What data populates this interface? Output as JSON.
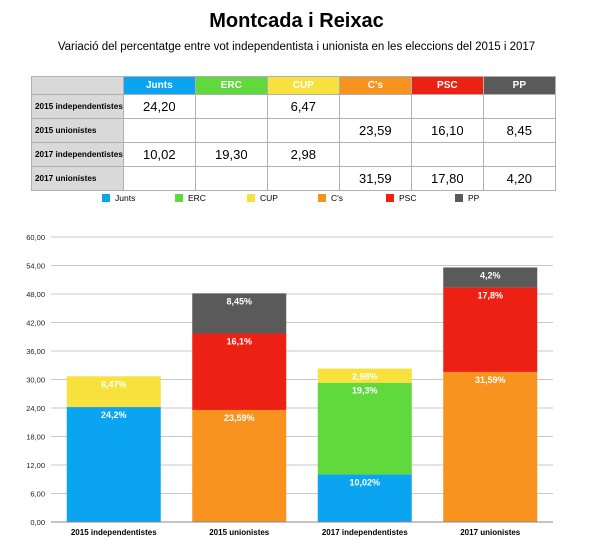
{
  "title": "Montcada i Reixac",
  "subtitle": "Variació del percentatge entre vot independentista i unionista en les eleccions del 2015 i 2017",
  "colors": {
    "Junts": "#0aa4f0",
    "ERC": "#5fd93b",
    "CUP": "#f7e13c",
    "Cs": "#f7931e",
    "PSC": "#ec2114",
    "PP": "#5a5a5a"
  },
  "table": {
    "headers": [
      "Junts",
      "ERC",
      "CUP",
      "C's",
      "PSC",
      "PP"
    ],
    "rows": [
      {
        "label": "2015 independentistes",
        "cells": [
          "24,20",
          "",
          "6,47",
          "",
          "",
          ""
        ]
      },
      {
        "label": "2015 unionistes",
        "cells": [
          "",
          "",
          "",
          "23,59",
          "16,10",
          "8,45"
        ]
      },
      {
        "label": "2017 independentistes",
        "cells": [
          "10,02",
          "19,30",
          "2,98",
          "",
          "",
          ""
        ]
      },
      {
        "label": "2017 unionistes",
        "cells": [
          "",
          "",
          "",
          "31,59",
          "17,80",
          "4,20"
        ]
      }
    ]
  },
  "chart_data": {
    "type": "bar",
    "stacked": true,
    "categories": [
      "2015 independentistes",
      "2015 unionistes",
      "2017 independentistes",
      "2017 unionistes"
    ],
    "series": [
      {
        "name": "Junts",
        "color": "#0aa4f0",
        "values": [
          24.2,
          0,
          10.02,
          0
        ],
        "labels": [
          "24,2%",
          "",
          "10,02%",
          ""
        ]
      },
      {
        "name": "ERC",
        "color": "#5fd93b",
        "values": [
          0,
          0,
          19.3,
          0
        ],
        "labels": [
          "",
          "",
          "19,3%",
          ""
        ]
      },
      {
        "name": "CUP",
        "color": "#f7e13c",
        "values": [
          6.47,
          0,
          2.98,
          0
        ],
        "labels": [
          "6,47%",
          "",
          "2,98%",
          ""
        ]
      },
      {
        "name": "C's",
        "color": "#f7931e",
        "values": [
          0,
          23.59,
          0,
          31.59
        ],
        "labels": [
          "",
          "23,59%",
          "",
          "31,59%"
        ]
      },
      {
        "name": "PSC",
        "color": "#ec2114",
        "values": [
          0,
          16.1,
          0,
          17.8
        ],
        "labels": [
          "",
          "16,1%",
          "",
          "17,8%"
        ]
      },
      {
        "name": "PP",
        "color": "#5a5a5a",
        "values": [
          0,
          8.45,
          0,
          4.2
        ],
        "labels": [
          "",
          "8,45%",
          "",
          "4,2%"
        ]
      }
    ],
    "yticks": [
      "0,00",
      "6,00",
      "12,00",
      "18,00",
      "24,00",
      "30,00",
      "36,00",
      "42,00",
      "48,00",
      "54,00",
      "60,00"
    ],
    "ylim": [
      0,
      60
    ],
    "grid": true,
    "legend": "top-center"
  }
}
